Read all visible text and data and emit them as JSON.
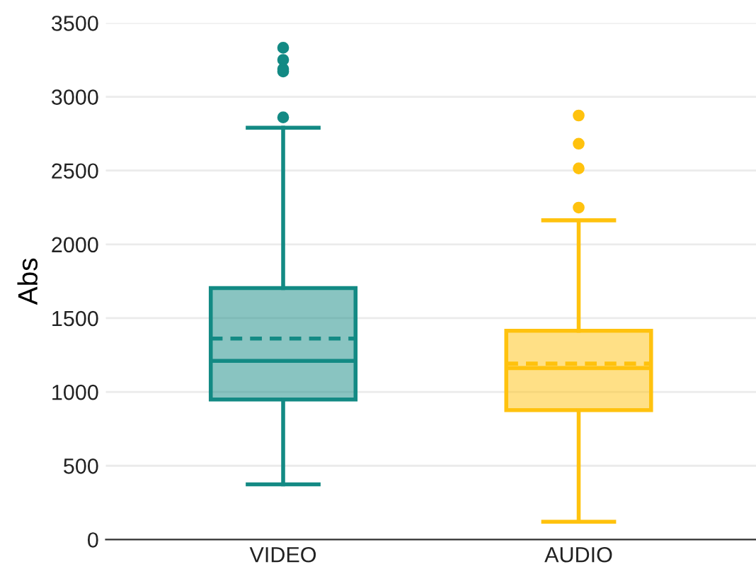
{
  "chart_data": {
    "type": "box",
    "ylabel": "Abs",
    "categories": [
      "VIDEO",
      "AUDIO"
    ],
    "colors": [
      "#138a84",
      "#ffc20e"
    ],
    "boxes": [
      {
        "low": 374,
        "q1": 949,
        "median": 1211,
        "q3": 1704,
        "high": 2790,
        "mean": 1362,
        "outliers": [
          2860,
          3171,
          3188,
          3250,
          3332
        ]
      },
      {
        "low": 121,
        "q1": 877,
        "median": 1162,
        "q3": 1415,
        "high": 2163,
        "mean": 1192,
        "outliers": [
          2249,
          2515,
          2682,
          2873
        ]
      }
    ],
    "ylim": [
      0,
      3500
    ],
    "yticks": [
      0,
      500,
      1000,
      1500,
      2000,
      2500,
      3000,
      3500
    ],
    "grid": "y"
  }
}
